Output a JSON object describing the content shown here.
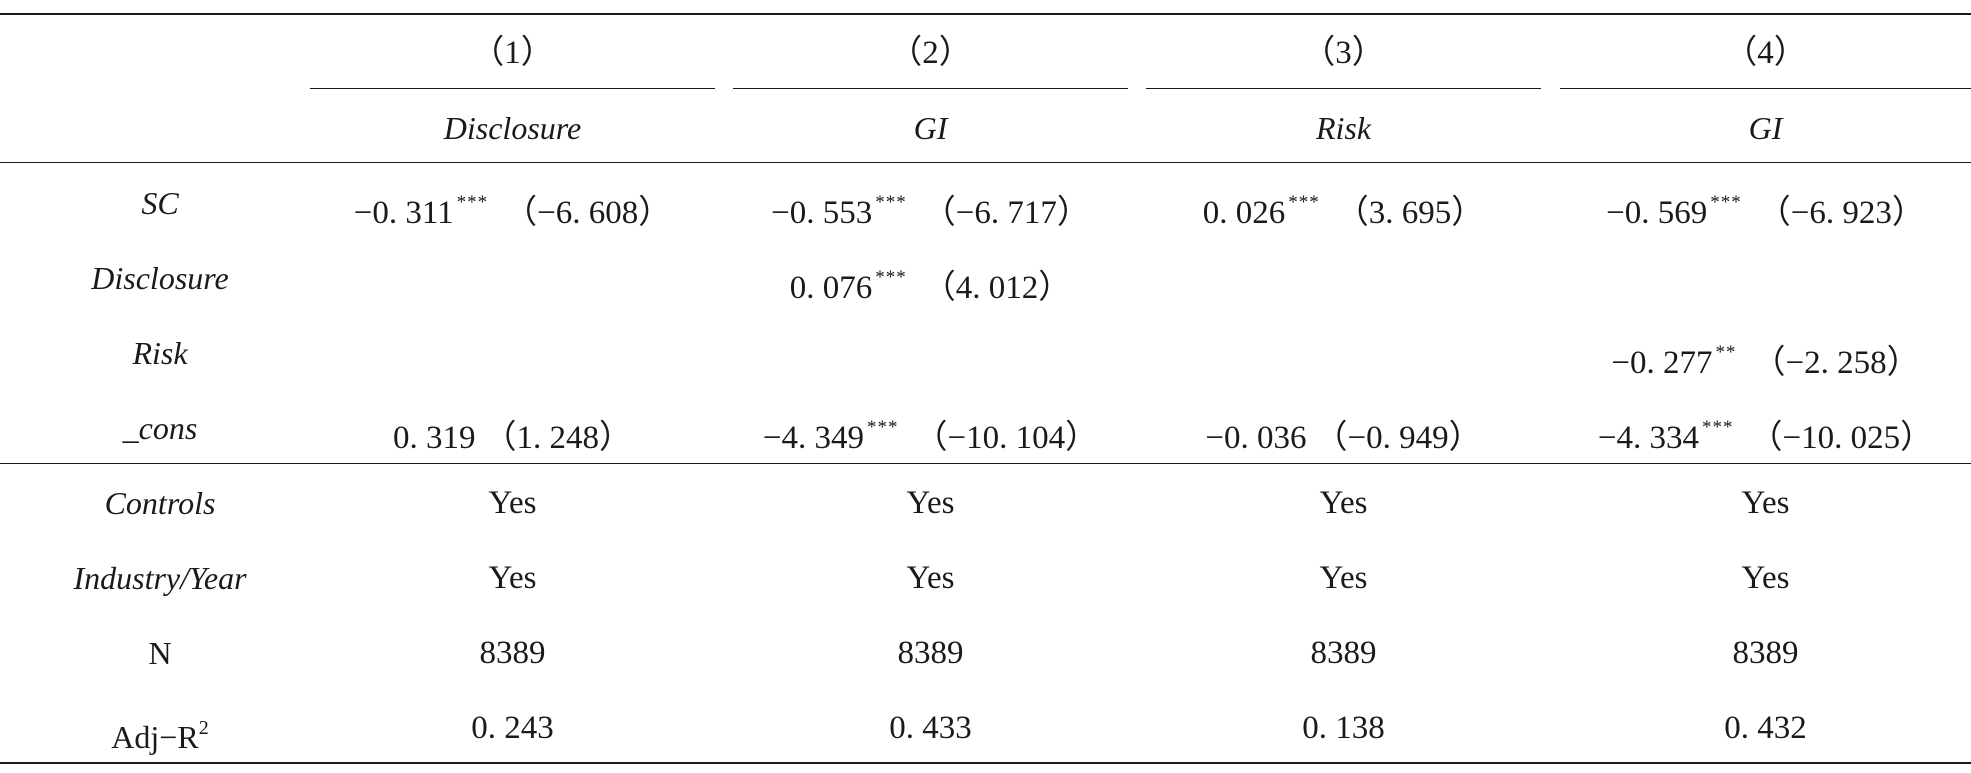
{
  "columns": [
    {
      "number": "（1）",
      "dep_var": "Disclosure"
    },
    {
      "number": "（2）",
      "dep_var": "GI"
    },
    {
      "number": "（3）",
      "dep_var": "Risk"
    },
    {
      "number": "（4）",
      "dep_var": "GI"
    }
  ],
  "rows": {
    "sc": {
      "label": "SC",
      "cells": [
        {
          "coef": "−0. 311",
          "sig": "***",
          "t": "（−6. 608）"
        },
        {
          "coef": "−0. 553",
          "sig": "***",
          "t": "（−6. 717）"
        },
        {
          "coef": "0. 026",
          "sig": "***",
          "t": "（3. 695）"
        },
        {
          "coef": "−0. 569",
          "sig": "***",
          "t": "（−6. 923）"
        }
      ]
    },
    "disclosure": {
      "label": "Disclosure",
      "cells": [
        {
          "coef": "",
          "sig": "",
          "t": ""
        },
        {
          "coef": "0. 076",
          "sig": "***",
          "t": "（4. 012）"
        },
        {
          "coef": "",
          "sig": "",
          "t": ""
        },
        {
          "coef": "",
          "sig": "",
          "t": ""
        }
      ]
    },
    "risk": {
      "label": "Risk",
      "cells": [
        {
          "coef": "",
          "sig": "",
          "t": ""
        },
        {
          "coef": "",
          "sig": "",
          "t": ""
        },
        {
          "coef": "",
          "sig": "",
          "t": ""
        },
        {
          "coef": "−0. 277",
          "sig": "**",
          "t": "（−2. 258）"
        }
      ]
    },
    "cons": {
      "label": "_cons",
      "cells": [
        {
          "coef": "0. 319",
          "sig": "",
          "t": "（1. 248）"
        },
        {
          "coef": "−4. 349",
          "sig": "***",
          "t": "（−10. 104）"
        },
        {
          "coef": "−0. 036",
          "sig": "",
          "t": "（−0. 949）"
        },
        {
          "coef": "−4. 334",
          "sig": "***",
          "t": "（−10. 025）"
        }
      ]
    },
    "controls": {
      "label": "Controls",
      "values": [
        "Yes",
        "Yes",
        "Yes",
        "Yes"
      ]
    },
    "industry_year": {
      "label": "Industry/Year",
      "values": [
        "Yes",
        "Yes",
        "Yes",
        "Yes"
      ]
    },
    "n": {
      "label": "N",
      "values": [
        "8389",
        "8389",
        "8389",
        "8389"
      ]
    },
    "adj_r2": {
      "label_base": "Adj−R",
      "label_sup": "2",
      "values": [
        "0. 243",
        "0. 433",
        "0. 138",
        "0. 432"
      ]
    }
  }
}
